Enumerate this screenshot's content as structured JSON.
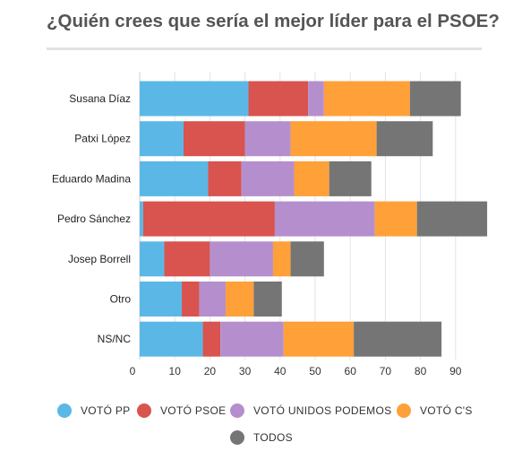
{
  "title": "¿Quién crees que sería el mejor líder para el PSOE?",
  "colors": {
    "pp": "#5bb8e6",
    "psoe": "#d9534f",
    "podemos": "#b58fcd",
    "cs": "#ffa038",
    "todos": "#757575"
  },
  "chart_data": {
    "type": "bar",
    "orientation": "horizontal",
    "stacked": true,
    "title": "¿Quién crees que sería el mejor líder para el PSOE?",
    "xlabel": "",
    "ylabel": "",
    "xlim": [
      0,
      95
    ],
    "xticks": [
      0,
      10,
      20,
      30,
      40,
      50,
      60,
      70,
      80,
      90
    ],
    "grid": true,
    "legend_position": "bottom",
    "categories": [
      "Susana Díaz",
      "Patxi López",
      "Eduardo Madina",
      "Pedro Sánchez",
      "Josep Borrell",
      "Otro",
      "NS/NC"
    ],
    "series": [
      {
        "name": "VOTÓ PP",
        "color_key": "pp",
        "values": [
          31,
          12.5,
          19.5,
          1,
          7,
          12,
          18
        ]
      },
      {
        "name": "VOTÓ PSOE",
        "color_key": "psoe",
        "values": [
          17,
          17.5,
          9.5,
          37.5,
          13,
          5,
          5
        ]
      },
      {
        "name": "VOTÓ UNIDOS PODEMOS",
        "color_key": "podemos",
        "values": [
          4.5,
          13,
          15,
          28.5,
          18,
          7.5,
          18
        ]
      },
      {
        "name": "VOTÓ C'S",
        "color_key": "cs",
        "values": [
          24.5,
          24.5,
          10,
          12,
          5,
          8,
          20
        ]
      },
      {
        "name": "TODOS",
        "color_key": "todos",
        "values": [
          14.5,
          16,
          12,
          20,
          9.5,
          8,
          25
        ]
      }
    ]
  }
}
